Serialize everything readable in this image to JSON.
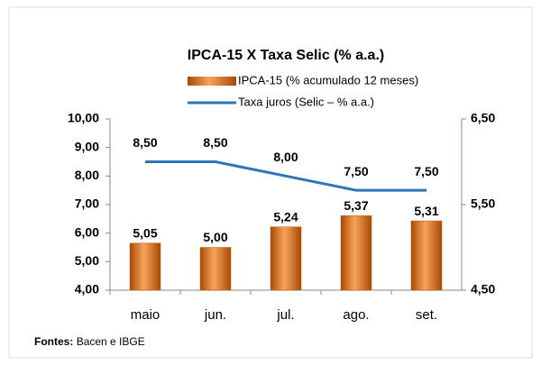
{
  "chart_data": {
    "type": "bar",
    "title": "IPCA-15 X Taxa Selic (% a.a.)",
    "categories": [
      "maio",
      "jun.",
      "jul.",
      "ago.",
      "set."
    ],
    "series": [
      {
        "name": "IPCA-15 (% acumulado 12 meses)",
        "type": "bar",
        "axis": "y2",
        "color": "#e46c0a",
        "values": [
          5.05,
          5.0,
          5.24,
          5.37,
          5.31
        ],
        "value_labels": [
          "5,05",
          "5,00",
          "5,24",
          "5,37",
          "5,31"
        ]
      },
      {
        "name": "Taxa juros (Selic – % a.a.)",
        "type": "line",
        "color": "#2e75b6",
        "values": [
          8.5,
          8.5,
          8.0,
          7.5,
          7.5
        ],
        "value_labels": [
          "8,50",
          "8,50",
          "8,00",
          "7,50",
          "7,50"
        ]
      }
    ],
    "ylim": [
      4,
      10
    ],
    "yticks": [
      {
        "value": 4,
        "label": "4,00"
      },
      {
        "value": 5,
        "label": "5,00"
      },
      {
        "value": 6,
        "label": "6,00"
      },
      {
        "value": 7,
        "label": "7,00"
      },
      {
        "value": 8,
        "label": "8,00"
      },
      {
        "value": 9,
        "label": "9,00"
      },
      {
        "value": 10,
        "label": "10,00"
      }
    ],
    "ytick_color": "#3a9b5c",
    "y2lim": [
      4.5,
      6.5
    ],
    "y2ticks": [
      {
        "value": 4.5,
        "label": "4,50"
      },
      {
        "value": 5.5,
        "label": "5,50"
      },
      {
        "value": 6.5,
        "label": "6,50"
      }
    ],
    "y2tick_color": "#e46c0a",
    "grid": false
  },
  "footer": {
    "source_label": "Fontes:",
    "source": "Bacen e IBGE"
  }
}
